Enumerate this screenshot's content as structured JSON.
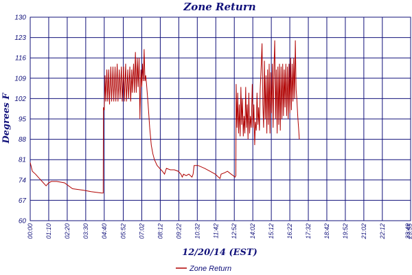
{
  "chart_data": {
    "type": "line",
    "title": "Zone Return",
    "ylabel": "Degrees F",
    "xlabel": "12/20/14 (EST)",
    "ylim": [
      60,
      130
    ],
    "yticks": [
      60,
      67,
      74,
      81,
      88,
      95,
      102,
      109,
      116,
      123,
      130
    ],
    "xlim": [
      0,
      1439
    ],
    "grid": true,
    "legend_position": "bottom-left",
    "colors": {
      "series": "#b00000",
      "grid": "#10107a",
      "text": "#10107a"
    },
    "xticks": [
      {
        "t": 0,
        "label": "00:00"
      },
      {
        "t": 70,
        "label": "01:10"
      },
      {
        "t": 140,
        "label": "02:20"
      },
      {
        "t": 210,
        "label": "03:30"
      },
      {
        "t": 280,
        "label": "04:40"
      },
      {
        "t": 352,
        "label": "05:52"
      },
      {
        "t": 422,
        "label": "07:02"
      },
      {
        "t": 492,
        "label": "08:12"
      },
      {
        "t": 562,
        "label": "09:22"
      },
      {
        "t": 632,
        "label": "10:32"
      },
      {
        "t": 702,
        "label": "11:42"
      },
      {
        "t": 772,
        "label": "12:52"
      },
      {
        "t": 842,
        "label": "14:02"
      },
      {
        "t": 912,
        "label": "15:12"
      },
      {
        "t": 982,
        "label": "16:22"
      },
      {
        "t": 1052,
        "label": "17:32"
      },
      {
        "t": 1122,
        "label": "18:42"
      },
      {
        "t": 1192,
        "label": "19:52"
      },
      {
        "t": 1262,
        "label": "21:02"
      },
      {
        "t": 1332,
        "label": "22:12"
      },
      {
        "t": 1429,
        "label": "23:49"
      },
      {
        "t": 1435,
        "label": "23:55"
      }
    ],
    "series": [
      {
        "name": "Zone Return",
        "points": [
          [
            0,
            80
          ],
          [
            8,
            77
          ],
          [
            20,
            76
          ],
          [
            30,
            75
          ],
          [
            40,
            74
          ],
          [
            50,
            73
          ],
          [
            60,
            72
          ],
          [
            70,
            73
          ],
          [
            80,
            73.5
          ],
          [
            100,
            73.5
          ],
          [
            130,
            73
          ],
          [
            160,
            71
          ],
          [
            200,
            70.5
          ],
          [
            230,
            70
          ],
          [
            270,
            69.5
          ],
          [
            276,
            69.5
          ],
          [
            277,
            99
          ],
          [
            280,
            98
          ],
          [
            283,
            110
          ],
          [
            286,
            101
          ],
          [
            290,
            112
          ],
          [
            293,
            101
          ],
          [
            297,
            112
          ],
          [
            300,
            100
          ],
          [
            305,
            113
          ],
          [
            308,
            101
          ],
          [
            313,
            113
          ],
          [
            316,
            101
          ],
          [
            321,
            113
          ],
          [
            324,
            101
          ],
          [
            329,
            114
          ],
          [
            332,
            101
          ],
          [
            337,
            112
          ],
          [
            340,
            102
          ],
          [
            345,
            113
          ],
          [
            348,
            101
          ],
          [
            353,
            113
          ],
          [
            356,
            101
          ],
          [
            361,
            114
          ],
          [
            364,
            101
          ],
          [
            369,
            112
          ],
          [
            372,
            102
          ],
          [
            377,
            113
          ],
          [
            380,
            101
          ],
          [
            384,
            112
          ],
          [
            386,
            104
          ],
          [
            391,
            114
          ],
          [
            394,
            104
          ],
          [
            398,
            118
          ],
          [
            401,
            104
          ],
          [
            405,
            116
          ],
          [
            408,
            106
          ],
          [
            412,
            116
          ],
          [
            415,
            95
          ],
          [
            419,
            112
          ],
          [
            422,
            106
          ],
          [
            425,
            114
          ],
          [
            428,
            108
          ],
          [
            431,
            119
          ],
          [
            434,
            108
          ],
          [
            437,
            110
          ],
          [
            440,
            107
          ],
          [
            446,
            100
          ],
          [
            452,
            92
          ],
          [
            458,
            86
          ],
          [
            464,
            83
          ],
          [
            470,
            81
          ],
          [
            480,
            79
          ],
          [
            490,
            78
          ],
          [
            500,
            77
          ],
          [
            508,
            76
          ],
          [
            515,
            78
          ],
          [
            530,
            77.5
          ],
          [
            545,
            77.5
          ],
          [
            560,
            77
          ],
          [
            570,
            76
          ],
          [
            575,
            75
          ],
          [
            580,
            76
          ],
          [
            590,
            75.5
          ],
          [
            600,
            76
          ],
          [
            612,
            75
          ],
          [
            616,
            76
          ],
          [
            620,
            79
          ],
          [
            635,
            79
          ],
          [
            660,
            78
          ],
          [
            680,
            77
          ],
          [
            700,
            76
          ],
          [
            712,
            75
          ],
          [
            718,
            74.5
          ],
          [
            722,
            76
          ],
          [
            736,
            76.5
          ],
          [
            746,
            77
          ],
          [
            760,
            76
          ],
          [
            775,
            75
          ],
          [
            778,
            75.5
          ],
          [
            779,
            107
          ],
          [
            782,
            92
          ],
          [
            785,
            104
          ],
          [
            788,
            90
          ],
          [
            791,
            100
          ],
          [
            794,
            89
          ],
          [
            797,
            106
          ],
          [
            800,
            93
          ],
          [
            803,
            102
          ],
          [
            806,
            89
          ],
          [
            809,
            96
          ],
          [
            812,
            90
          ],
          [
            815,
            106
          ],
          [
            818,
            92
          ],
          [
            821,
            100
          ],
          [
            824,
            88
          ],
          [
            827,
            104
          ],
          [
            830,
            90
          ],
          [
            833,
            96
          ],
          [
            836,
            92
          ],
          [
            840,
            107
          ],
          [
            843,
            92
          ],
          [
            846,
            100
          ],
          [
            849,
            86
          ],
          [
            852,
            94
          ],
          [
            855,
            91
          ],
          [
            858,
            104
          ],
          [
            861,
            93
          ],
          [
            864,
            99
          ],
          [
            867,
            91
          ],
          [
            870,
            105
          ],
          [
            874,
            114
          ],
          [
            877,
            121
          ],
          [
            880,
            100
          ],
          [
            883,
            92
          ],
          [
            886,
            115
          ],
          [
            889,
            95
          ],
          [
            892,
            110
          ],
          [
            895,
            90
          ],
          [
            898,
            112
          ],
          [
            901,
            93
          ],
          [
            904,
            114
          ],
          [
            907,
            90
          ],
          [
            910,
            111
          ],
          [
            913,
            97
          ],
          [
            916,
            114
          ],
          [
            919,
            92
          ],
          [
            922,
            113
          ],
          [
            925,
            122
          ],
          [
            928,
            95
          ],
          [
            931,
            112
          ],
          [
            934,
            90
          ],
          [
            937,
            113
          ],
          [
            940,
            93
          ],
          [
            943,
            114
          ],
          [
            946,
            91
          ],
          [
            949,
            113
          ],
          [
            952,
            95
          ],
          [
            955,
            114
          ],
          [
            958,
            96
          ],
          [
            961,
            112
          ],
          [
            964,
            99
          ],
          [
            967,
            114
          ],
          [
            970,
            96
          ],
          [
            973,
            113
          ],
          [
            976,
            95
          ],
          [
            979,
            114
          ],
          [
            982,
            97
          ],
          [
            985,
            116
          ],
          [
            988,
            98
          ],
          [
            991,
            114
          ],
          [
            994,
            101
          ],
          [
            997,
            116
          ],
          [
            1000,
            102
          ],
          [
            1003,
            122
          ],
          [
            1006,
            105
          ],
          [
            1009,
            101
          ],
          [
            1012,
            96
          ],
          [
            1015,
            92
          ],
          [
            1018,
            88
          ]
        ]
      }
    ]
  }
}
